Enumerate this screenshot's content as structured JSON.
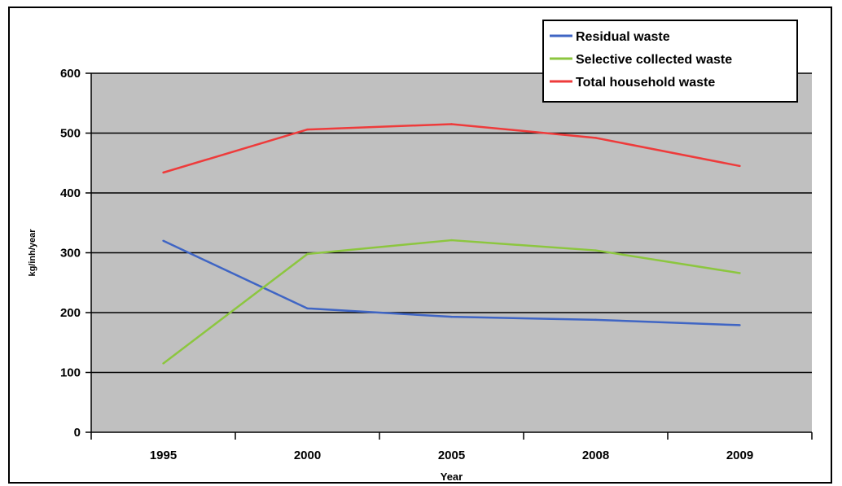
{
  "chart_data": {
    "type": "line",
    "xlabel": "Year",
    "ylabel": "kg/inh/year",
    "categories": [
      "1995",
      "2000",
      "2005",
      "2008",
      "2009"
    ],
    "ylim": [
      0,
      600
    ],
    "yticks": [
      "0",
      "100",
      "200",
      "300",
      "400",
      "500",
      "600"
    ],
    "grid": true,
    "legend_position": "top-right",
    "plot_background": "#c0c0c0",
    "series": [
      {
        "name": "Residual waste",
        "color": "#3f65c4",
        "values": [
          320,
          207,
          193,
          188,
          179
        ]
      },
      {
        "name": "Selective collected waste",
        "color": "#8cc63f",
        "values": [
          115,
          298,
          321,
          304,
          266
        ]
      },
      {
        "name": "Total household waste",
        "color": "#ee3b3b",
        "values": [
          434,
          506,
          515,
          492,
          445
        ]
      }
    ]
  }
}
